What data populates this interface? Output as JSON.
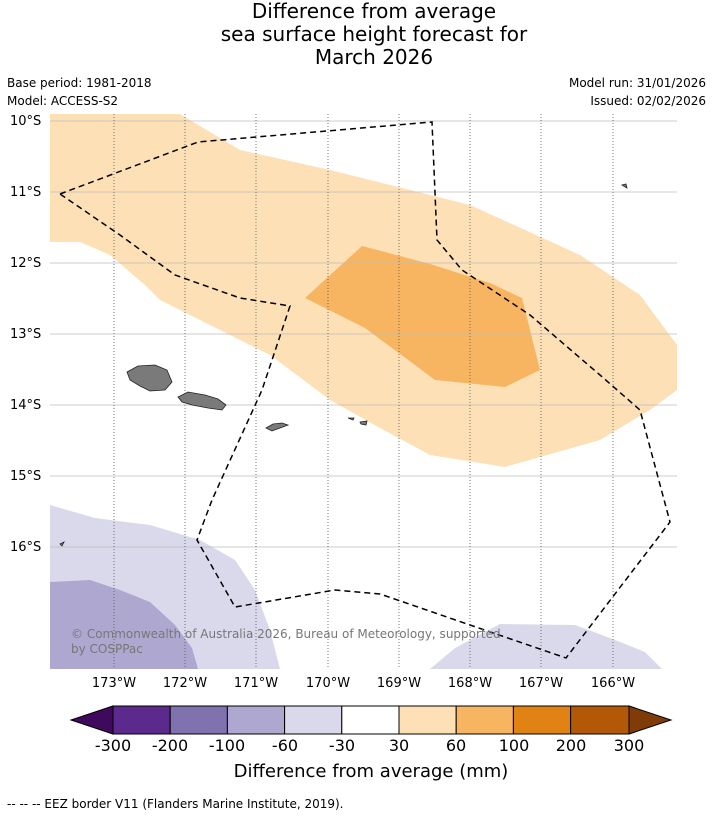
{
  "title": {
    "line1": "Difference from average",
    "line2": "sea surface height forecast for",
    "line3": "March 2026"
  },
  "meta": {
    "base_period": "Base period: 1981-2018",
    "model": "Model: ACCESS-S2",
    "model_run": "Model run: 31/01/2026",
    "issued": "Issued: 02/02/2026"
  },
  "map": {
    "lat_labels": [
      "10°S",
      "11°S",
      "12°S",
      "13°S",
      "14°S",
      "15°S",
      "16°S"
    ],
    "lon_labels": [
      "173°W",
      "172°W",
      "171°W",
      "170°W",
      "169°W",
      "168°W",
      "167°W",
      "166°W"
    ],
    "copyright_line1": "© Commonwealth of Australia 2026, Bureau of Meteorology, supported",
    "copyright_line2": "by COSPPac"
  },
  "colorbar": {
    "ticks": [
      "-300",
      "-200",
      "-100",
      "-60",
      "-30",
      "30",
      "60",
      "100",
      "200",
      "300"
    ],
    "title": "Difference from average (mm)",
    "colors": [
      "#3f0a5e",
      "#5b2a8c",
      "#8072ae",
      "#aea8d1",
      "#d9d9eb",
      "#ffffff",
      "#fde0b6",
      "#f8b561",
      "#e08214",
      "#b35806",
      "#7f3b08"
    ]
  },
  "footnote": "--  --  -- EEZ border V11 (Flanders Marine Institute, 2019)."
}
